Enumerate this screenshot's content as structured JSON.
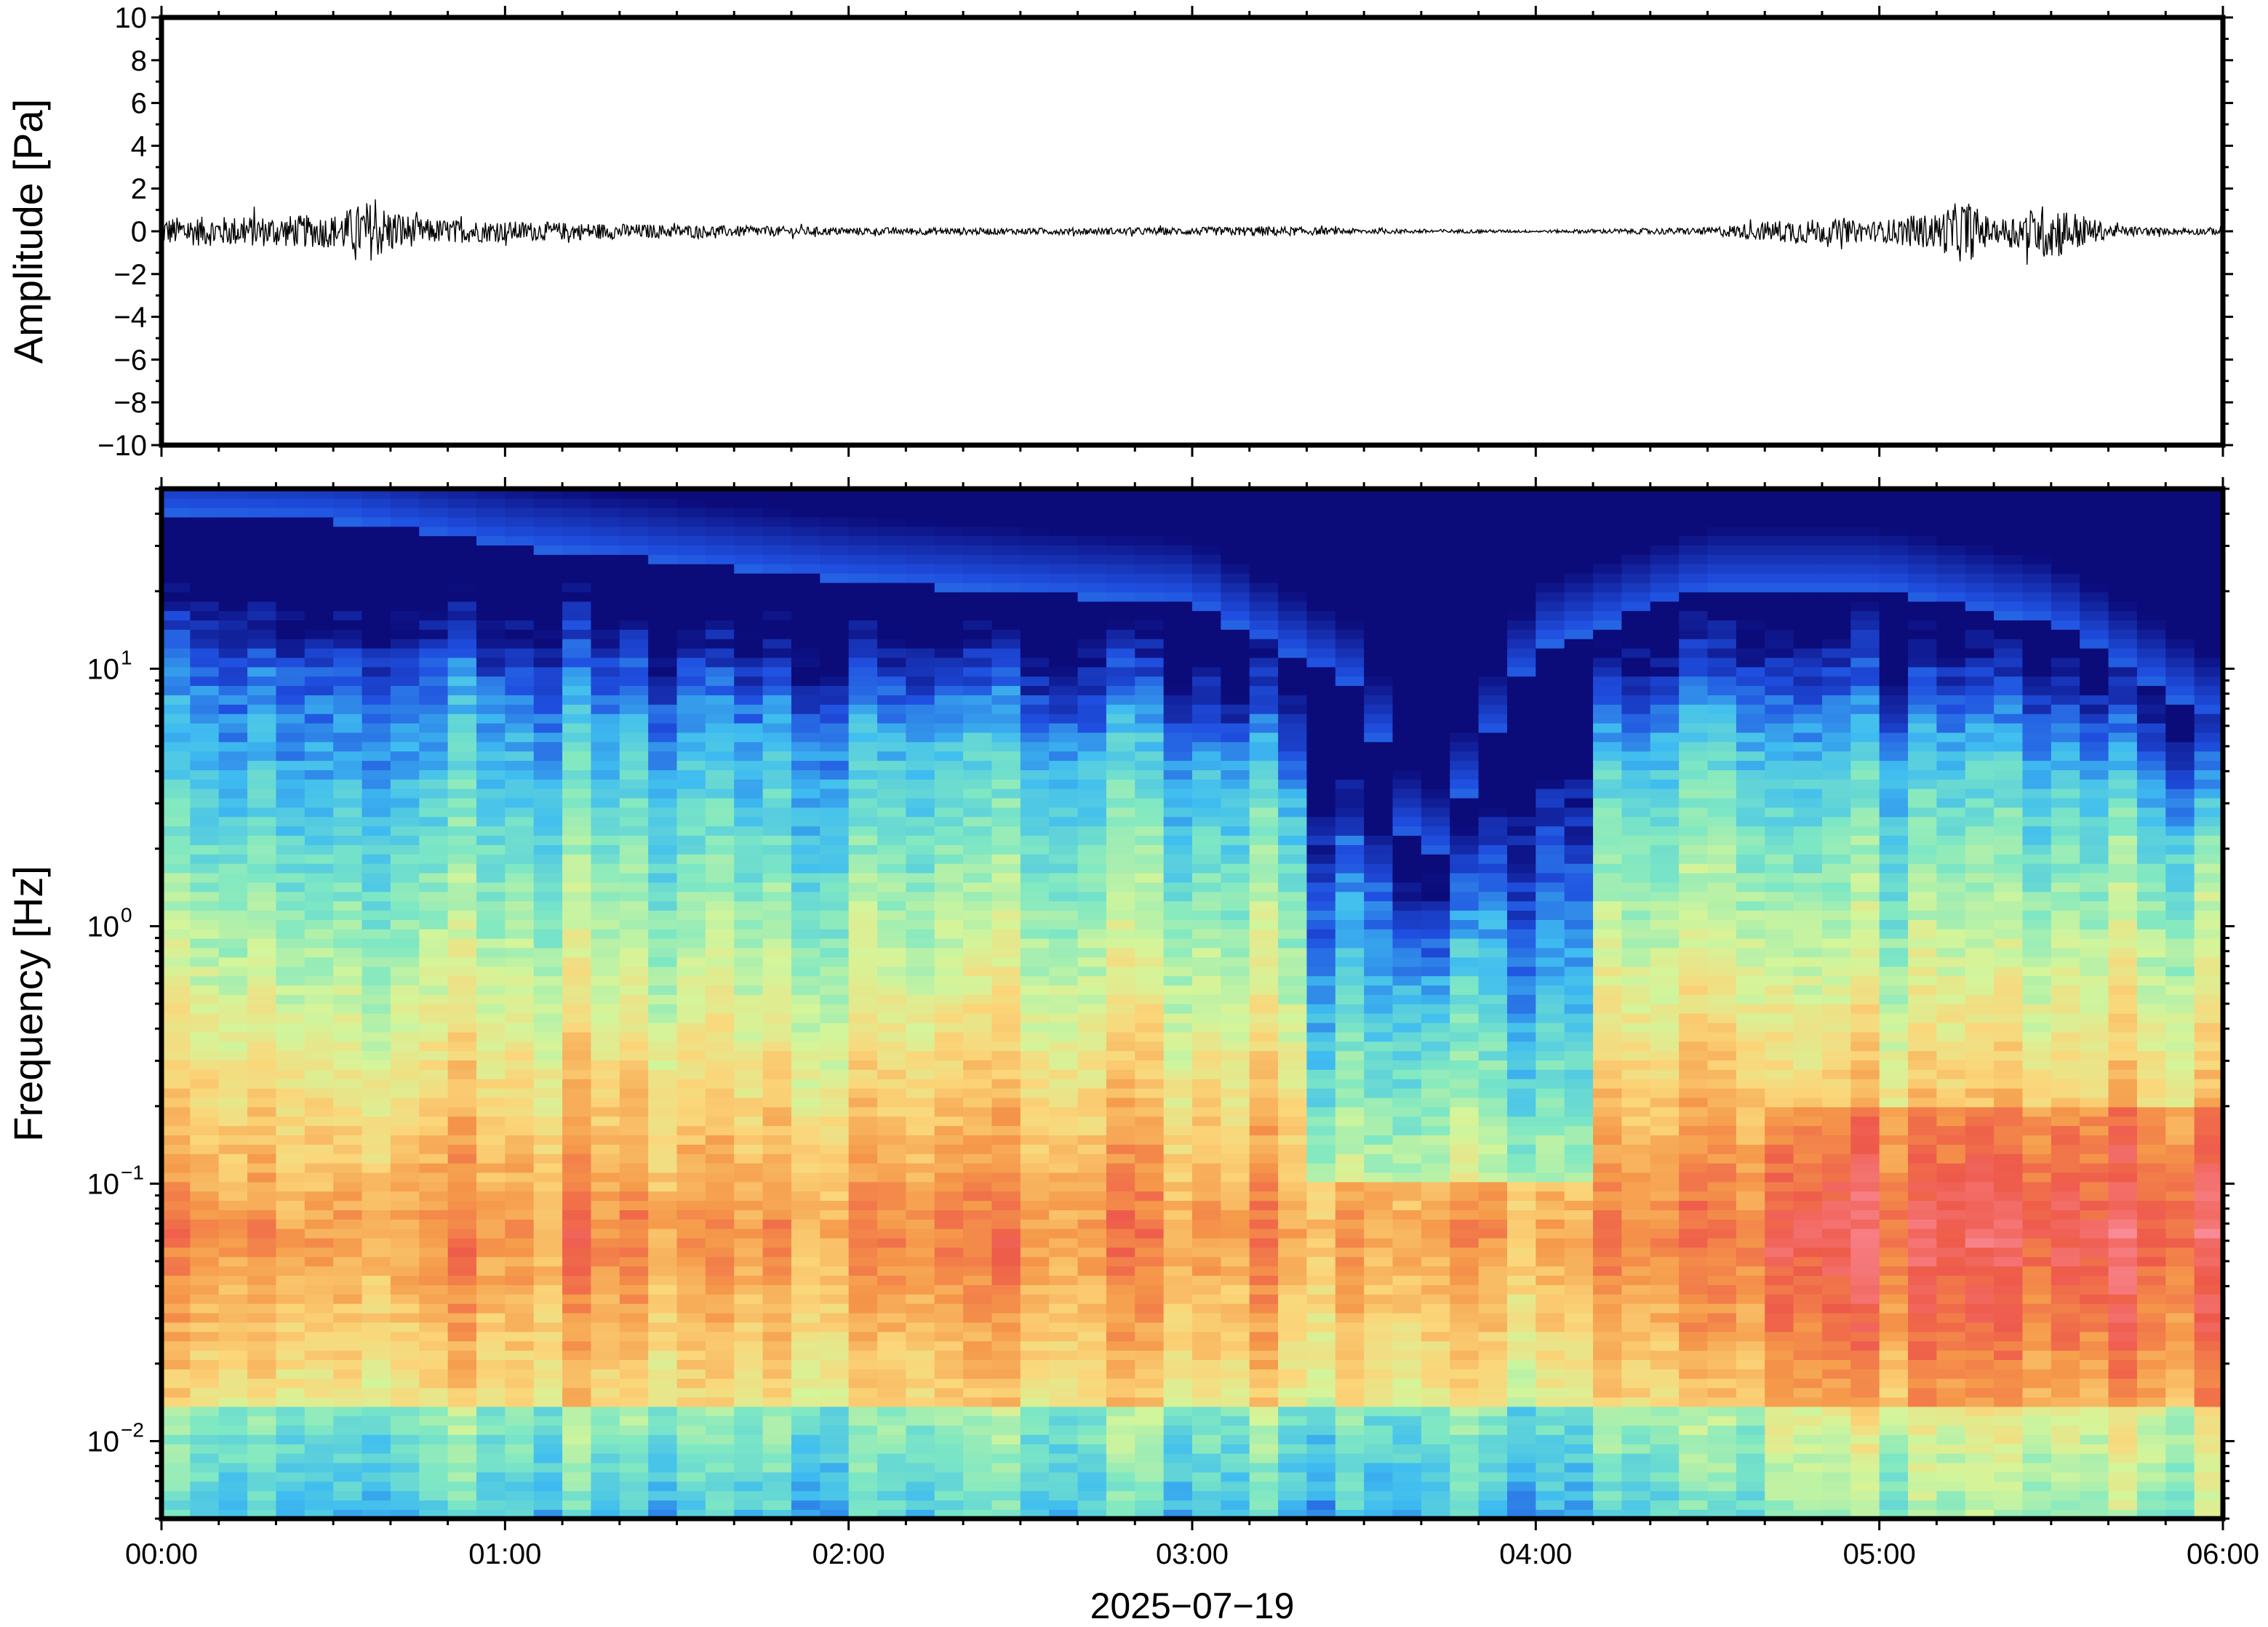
{
  "chart_data": [
    {
      "type": "line",
      "panel": "waveform",
      "ylabel": "Amplitude [Pa]",
      "ylim": [
        -10,
        10
      ],
      "yticks": [
        "10",
        "8",
        "6",
        "4",
        "2",
        "0",
        "−2",
        "−4",
        "−6",
        "−8",
        "−10"
      ],
      "xlim": [
        "00:00",
        "06:00"
      ],
      "series": [
        {
          "color": "#000000",
          "x": [
            "00:00",
            "00:15",
            "00:30",
            "00:36",
            "00:45",
            "01:00",
            "01:30",
            "02:00",
            "02:30",
            "03:00",
            "03:12",
            "03:30",
            "03:45",
            "04:00",
            "04:30",
            "04:45",
            "05:00",
            "05:05",
            "05:10",
            "05:15",
            "05:20",
            "05:30",
            "05:40",
            "05:50",
            "06:00"
          ],
          "envelope": [
            1.1,
            1.2,
            1.3,
            2.4,
            1.0,
            0.8,
            0.5,
            0.3,
            0.25,
            0.3,
            0.4,
            0.2,
            0.15,
            0.1,
            0.3,
            1.0,
            0.8,
            1.2,
            1.4,
            2.6,
            0.8,
            2.3,
            0.5,
            0.25,
            0.3
          ]
        }
      ]
    },
    {
      "type": "heatmap",
      "panel": "spectrogram",
      "ylabel": "Frequency [Hz]",
      "xlabel": "2025−07−19",
      "yscale": "log",
      "ylim": [
        0.005,
        50
      ],
      "yticks": [
        {
          "base": "10",
          "exp": "1"
        },
        {
          "base": "10",
          "exp": "0"
        },
        {
          "base": "10",
          "exp": "−1"
        },
        {
          "base": "10",
          "exp": "−2"
        }
      ],
      "xticks": [
        "00:00",
        "01:00",
        "02:00",
        "03:00",
        "04:00",
        "05:00",
        "06:00"
      ],
      "colormap": [
        "#0b0b7a",
        "#1f4fe0",
        "#3fbdf0",
        "#7fe8c3",
        "#d4f59a",
        "#fbd67a",
        "#f59a4a",
        "#ee5a4a",
        "#fa8a96"
      ],
      "upper_noise_edge_hz": {
        "x": [
          "00:00",
          "00:30",
          "01:00",
          "02:00",
          "03:00",
          "03:30",
          "03:40",
          "04:00",
          "04:30",
          "05:00",
          "05:30",
          "06:00"
        ],
        "values": [
          40,
          38,
          30,
          22,
          18,
          8,
          1.5,
          12,
          20,
          20,
          15,
          6
        ]
      },
      "energy_peak_band_hz": [
        0.02,
        0.2
      ]
    }
  ]
}
